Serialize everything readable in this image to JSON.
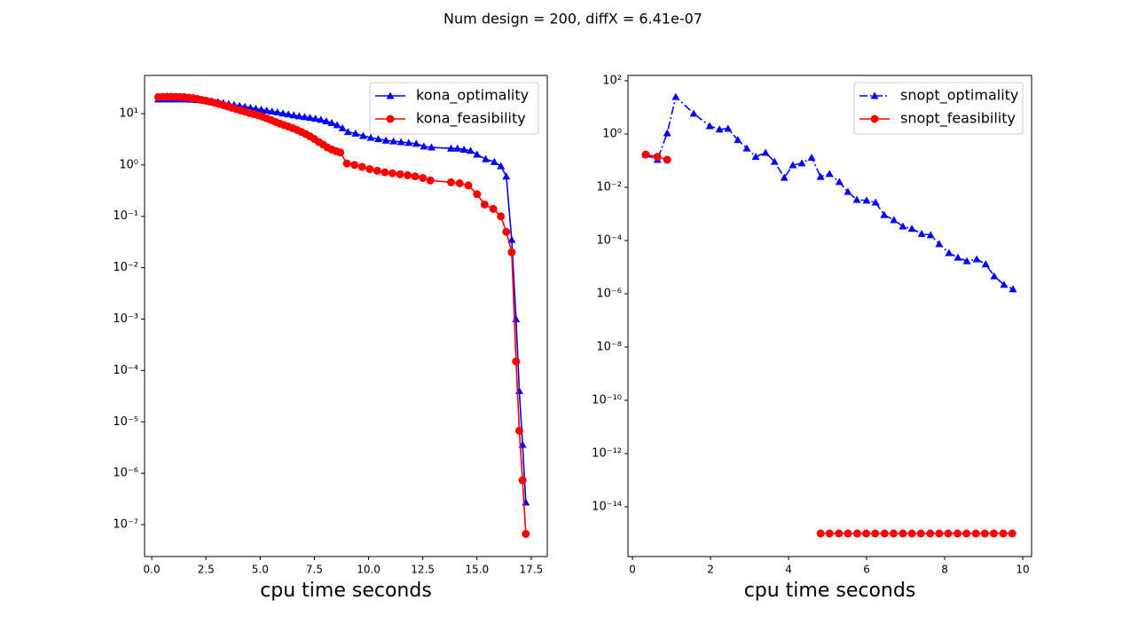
{
  "title": "Num design = 200, diffX = 6.41e-07",
  "chart_data": [
    {
      "type": "line",
      "xlabel": "cpu time seconds",
      "yscale": "log",
      "legend": "upper right",
      "xlim": [
        -0.33,
        18.24
      ],
      "ylim": [
        2.39e-08,
        55.3
      ],
      "xticks": [
        {
          "value": 0,
          "label": "0.0"
        },
        2.5,
        {
          "value": 5,
          "label": "5.0"
        },
        7.5,
        {
          "value": 10,
          "label": "10.0"
        },
        12.5,
        {
          "value": 15,
          "label": "15.0"
        },
        17.5
      ],
      "yticks": [
        {
          "value": 1e-07,
          "label": "10⁻⁷"
        },
        {
          "value": 1e-06,
          "label": "10⁻⁶"
        },
        {
          "value": 1e-05,
          "label": "10⁻⁵"
        },
        {
          "value": 0.0001,
          "label": "10⁻⁴"
        },
        {
          "value": 0.001,
          "label": "10⁻³"
        },
        {
          "value": 0.01,
          "label": "10⁻²"
        },
        {
          "value": 0.1,
          "label": "10⁻¹"
        },
        {
          "value": 1,
          "label": "10⁰"
        },
        {
          "value": 10,
          "label": "10¹"
        }
      ],
      "series": [
        {
          "name": "kona_optimality",
          "color": "#0000ff",
          "marker": "triangle",
          "linestyle": "solid",
          "x": [
            0.3,
            0.55,
            0.8,
            1.05,
            1.3,
            1.55,
            1.8,
            2.05,
            2.3,
            2.55,
            2.8,
            3.05,
            3.3,
            3.55,
            3.8,
            4.05,
            4.3,
            4.55,
            4.8,
            5.05,
            5.3,
            5.55,
            5.8,
            6.05,
            6.3,
            6.55,
            6.8,
            7.05,
            7.3,
            7.55,
            7.8,
            8.05,
            8.3,
            8.55,
            8.8,
            9.05,
            9.4,
            9.75,
            10.1,
            10.45,
            10.8,
            11.15,
            11.5,
            11.85,
            12.2,
            12.55,
            12.9,
            13.8,
            14.1,
            14.4,
            14.7,
            15.0,
            15.4,
            15.8,
            16.1,
            16.35,
            16.6,
            16.8,
            16.95,
            17.1,
            17.25
          ],
          "values": [
            19,
            19,
            19,
            19,
            19,
            19,
            18.8,
            18.5,
            18.2,
            17.8,
            17.3,
            16.8,
            16.2,
            15.5,
            14.8,
            14.2,
            13.6,
            13,
            12.5,
            12,
            11.5,
            11,
            10.6,
            10.1,
            9.7,
            9.3,
            8.9,
            8.6,
            8.3,
            8.0,
            7.6,
            7.1,
            6.6,
            6.0,
            5.2,
            4.4,
            4.1,
            3.7,
            3.4,
            3.2,
            3.0,
            2.9,
            2.8,
            2.7,
            2.6,
            2.3,
            2.2,
            2.1,
            2.1,
            2.0,
            1.9,
            1.6,
            1.3,
            1.15,
            0.95,
            0.6,
            0.035,
            0.001,
            4e-05,
            3.6e-06,
            2.7e-07
          ]
        },
        {
          "name": "kona_feasibility",
          "color": "#ff0000",
          "marker": "circle",
          "linestyle": "solid",
          "x": [
            0.3,
            0.5,
            0.7,
            0.9,
            1.1,
            1.3,
            1.5,
            1.7,
            1.9,
            2.1,
            2.3,
            2.5,
            2.7,
            2.9,
            3.1,
            3.3,
            3.5,
            3.7,
            3.9,
            4.1,
            4.3,
            4.5,
            4.7,
            4.9,
            5.1,
            5.3,
            5.5,
            5.7,
            5.9,
            6.1,
            6.3,
            6.5,
            6.7,
            6.9,
            7.1,
            7.3,
            7.5,
            7.7,
            7.9,
            8.1,
            8.3,
            8.5,
            8.7,
            9.0,
            9.35,
            9.7,
            10.05,
            10.4,
            10.75,
            11.1,
            11.45,
            11.8,
            12.15,
            12.5,
            12.85,
            13.8,
            14.2,
            14.6,
            15.0,
            15.35,
            15.75,
            16.1,
            16.35,
            16.6,
            16.8,
            16.95,
            17.1,
            17.25
          ],
          "values": [
            21,
            21.2,
            21.3,
            21.3,
            21.2,
            21.1,
            20.9,
            20.5,
            20,
            19.3,
            18.5,
            17.8,
            17,
            16.2,
            15.4,
            14.6,
            13.8,
            13,
            12.2,
            11.5,
            10.9,
            10.3,
            9.8,
            9.3,
            8.7,
            8.1,
            7.5,
            6.9,
            6.4,
            6.0,
            5.6,
            5.2,
            4.8,
            4.4,
            4.0,
            3.6,
            3.2,
            2.8,
            2.5,
            2.2,
            2.0,
            1.85,
            1.75,
            1.07,
            1.0,
            0.92,
            0.83,
            0.77,
            0.72,
            0.69,
            0.66,
            0.63,
            0.6,
            0.56,
            0.5,
            0.46,
            0.44,
            0.4,
            0.27,
            0.17,
            0.14,
            0.1,
            0.05,
            0.02,
            0.00015,
            6.7e-06,
            7.3e-07,
            6.6e-08
          ]
        }
      ]
    },
    {
      "type": "line",
      "xlabel": "cpu time seconds",
      "yscale": "log",
      "legend": "upper right",
      "xlim": [
        -0.114,
        10.227
      ],
      "ylim": [
        1.36e-16,
        158.5
      ],
      "xticks": [
        0,
        2,
        4,
        6,
        8,
        10
      ],
      "yticks": [
        {
          "value": 1e-14,
          "label": "10⁻¹⁴"
        },
        {
          "value": 1e-12,
          "label": "10⁻¹²"
        },
        {
          "value": 1e-10,
          "label": "10⁻¹⁰"
        },
        {
          "value": 1e-08,
          "label": "10⁻⁸"
        },
        {
          "value": 1e-06,
          "label": "10⁻⁶"
        },
        {
          "value": 0.0001,
          "label": "10⁻⁴"
        },
        {
          "value": 0.01,
          "label": "10⁻²"
        },
        {
          "value": 1,
          "label": "10⁰"
        },
        {
          "value": 100,
          "label": "10²"
        }
      ],
      "series": [
        {
          "name": "snopt_optimality",
          "color": "#0000ff",
          "marker": "triangle",
          "linestyle": "dashdot",
          "x": [
            0.34,
            0.64,
            0.89,
            1.11,
            1.57,
            1.98,
            2.23,
            2.45,
            2.7,
            2.93,
            3.16,
            3.41,
            3.64,
            3.89,
            4.11,
            4.34,
            4.59,
            4.82,
            5.05,
            5.3,
            5.52,
            5.75,
            6.0,
            6.23,
            6.45,
            6.7,
            6.93,
            7.16,
            7.41,
            7.64,
            7.86,
            8.11,
            8.34,
            8.57,
            8.82,
            9.05,
            9.27,
            9.52,
            9.75
          ],
          "values": [
            0.17,
            0.108,
            1.08,
            25,
            5.9,
            2,
            1.5,
            1.6,
            0.6,
            0.29,
            0.14,
            0.2,
            0.092,
            0.023,
            0.068,
            0.08,
            0.13,
            0.025,
            0.032,
            0.016,
            0.0068,
            0.0034,
            0.0032,
            0.0027,
            0.00092,
            0.00059,
            0.00034,
            0.00028,
            0.00018,
            0.00016,
            7.4e-05,
            3.4e-05,
            2.3e-05,
            1.7e-05,
            2e-05,
            1.3e-05,
            4.6e-06,
            2.2e-06,
            1.5e-06
          ]
        },
        {
          "name": "snopt_feasibility",
          "color": "#ff0000",
          "marker": "circle",
          "linestyle": "solid",
          "x": [
            0.34,
            0.64,
            0.89,
            null,
            4.82,
            5.05,
            5.29,
            5.52,
            5.76,
            5.99,
            6.22,
            6.46,
            6.69,
            6.93,
            7.16,
            7.39,
            7.63,
            7.86,
            8.09,
            8.33,
            8.56,
            8.8,
            9.03,
            9.26,
            9.5,
            9.73
          ],
          "values": [
            0.17,
            0.14,
            0.108,
            null,
            1e-15,
            1e-15,
            1e-15,
            1e-15,
            1e-15,
            1e-15,
            1e-15,
            1e-15,
            1e-15,
            1e-15,
            1e-15,
            1e-15,
            1e-15,
            1e-15,
            1e-15,
            1e-15,
            1e-15,
            1e-15,
            1e-15,
            1e-15,
            1e-15,
            1e-15
          ]
        }
      ]
    }
  ]
}
